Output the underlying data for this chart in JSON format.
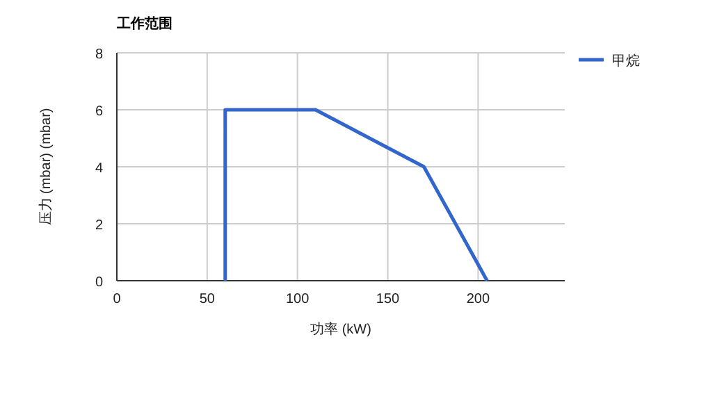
{
  "chart_data": {
    "type": "line",
    "title": "工作范围",
    "xlabel": "功率 (kW)",
    "ylabel": "压力 (mbar) (mbar)",
    "xlim": [
      0,
      248
    ],
    "ylim": [
      0,
      8
    ],
    "xticks": [
      0,
      50,
      100,
      150,
      200
    ],
    "yticks": [
      0,
      2,
      4,
      6,
      8
    ],
    "grid": true,
    "legend": "top right",
    "marker": "none",
    "series": [
      {
        "name": "甲烷",
        "color": "#3366cc",
        "x": [
          60,
          60,
          110,
          170,
          205
        ],
        "values": [
          0,
          6,
          6,
          4,
          0
        ]
      }
    ]
  }
}
